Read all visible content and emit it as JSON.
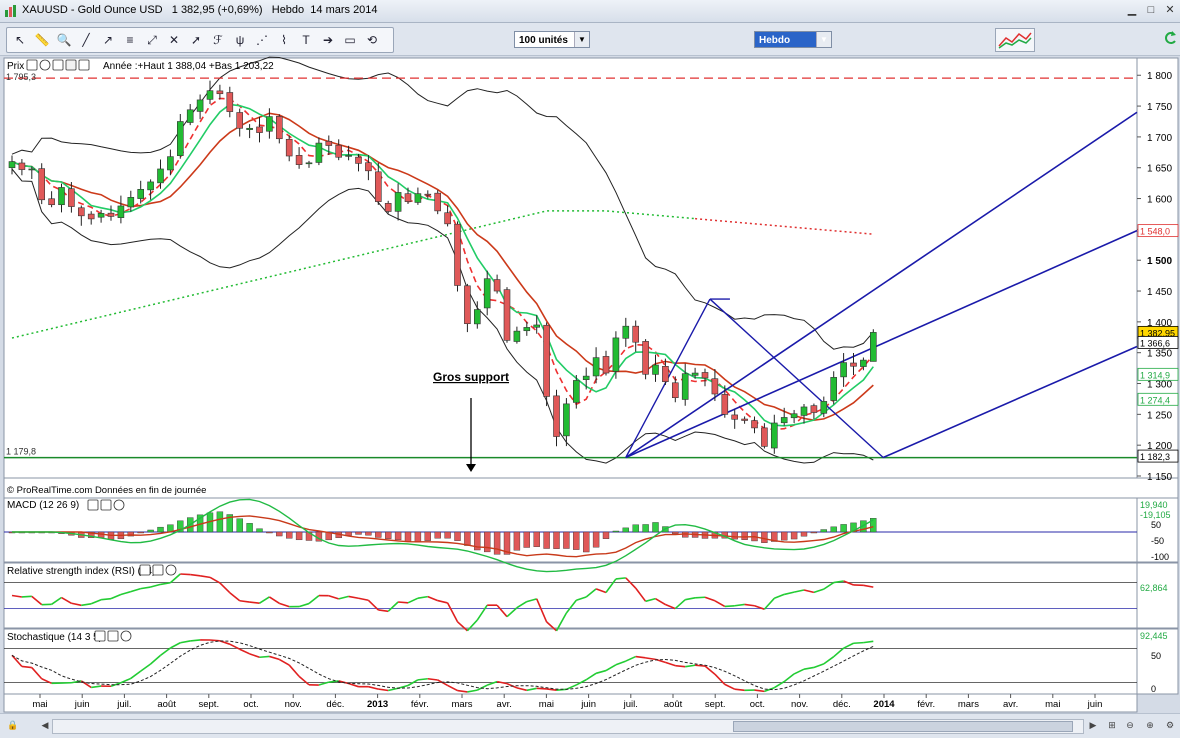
{
  "window": {
    "title": "XAUUSD - Gold Ounce USD   1 382,95 (+0,69%)   Hebdo  14 mars 2014"
  },
  "toolbar": {
    "units_value": "100 unités",
    "period_value": "Hebdo",
    "tools": [
      "pointer-icon",
      "ruler-icon",
      "magnifier-icon",
      "line-tool-icon",
      "ray-tool-icon",
      "channel-tool-icon",
      "trend-tool-icon",
      "cross-tool-icon",
      "arrow-tool-icon",
      "fibonacci-icon",
      "pitchfork-icon",
      "fan-tool-icon",
      "retracement-icon",
      "text-tool-icon",
      "arrow-right-icon",
      "rectangle-icon",
      "reset-icon"
    ]
  },
  "chart_data": [
    {
      "type": "candlestick",
      "panel_label": "Prix",
      "header_info": "Année :+Haut 1 388,04 +Bas 1 203,22",
      "source_note": "© ProRealTime.com  Données en fin de journée",
      "annotation": "Gros support",
      "support_level_label": "1 179,8",
      "high_level_label": "1 795,3",
      "ylim": [
        1150,
        1815
      ],
      "y_ticks": [
        {
          "v": 1800,
          "t": "1 800"
        },
        {
          "v": 1750,
          "t": "1 750"
        },
        {
          "v": 1700,
          "t": "1 700"
        },
        {
          "v": 1650,
          "t": "1 650"
        },
        {
          "v": 1600,
          "t": "1 600"
        },
        {
          "v": 1550,
          "t": ""
        },
        {
          "v": 1500,
          "t": "1 500"
        },
        {
          "v": 1450,
          "t": "1 450"
        },
        {
          "v": 1400,
          "t": "1 400"
        },
        {
          "v": 1350,
          "t": "1 350"
        },
        {
          "v": 1300,
          "t": "1 300"
        },
        {
          "v": 1250,
          "t": "1 250"
        },
        {
          "v": 1200,
          "t": "1 200"
        },
        {
          "v": 1150,
          "t": "1 150"
        }
      ],
      "value_tags": [
        {
          "v": 1548.0,
          "t": "1 548,0",
          "color": "#e03030"
        },
        {
          "v": 1382.95,
          "t": "1 382,95",
          "color": "#000000",
          "bg": "#ffd700"
        },
        {
          "v": 1366.6,
          "t": "1 366,6",
          "color": "#000000"
        },
        {
          "v": 1314.9,
          "t": "1 314,9",
          "color": "#22aa44"
        },
        {
          "v": 1274.4,
          "t": "1 274,4",
          "color": "#22aa44"
        },
        {
          "v": 1182.3,
          "t": "1 182,3",
          "color": "#000000"
        }
      ],
      "x_labels": [
        "mai",
        "juin",
        "juil.",
        "août",
        "sept.",
        "oct.",
        "nov.",
        "déc.",
        "2013",
        "févr.",
        "mars",
        "avr.",
        "mai",
        "juin",
        "juil.",
        "août",
        "sept.",
        "oct.",
        "nov.",
        "déc.",
        "2014",
        "févr.",
        "mars",
        "avr.",
        "mai",
        "juin"
      ],
      "x_label_bold": [
        "2013",
        "2014"
      ],
      "weekly_close": [
        1660,
        1647,
        1648,
        1598,
        1590,
        1618,
        1587,
        1572,
        1567,
        1576,
        1571,
        1588,
        1602,
        1615,
        1627,
        1648,
        1668,
        1725,
        1744,
        1760,
        1775,
        1770,
        1741,
        1714,
        1714,
        1707,
        1733,
        1697,
        1669,
        1655,
        1658,
        1690,
        1686,
        1667,
        1670,
        1657,
        1645,
        1595,
        1579,
        1610,
        1595,
        1608,
        1607,
        1580,
        1559,
        1459,
        1397,
        1420,
        1470,
        1450,
        1370,
        1385,
        1391,
        1395,
        1279,
        1214,
        1267,
        1305,
        1312,
        1342,
        1317,
        1374,
        1393,
        1367,
        1315,
        1330,
        1303,
        1277,
        1316,
        1317,
        1309,
        1283,
        1250,
        1242,
        1240,
        1228,
        1198,
        1236,
        1245,
        1251,
        1262,
        1253,
        1271,
        1310,
        1334,
        1328,
        1338,
        1382.95
      ],
      "overlays": [
        "bollinger_upper",
        "bollinger_lower",
        "moving_average_red",
        "moving_average_green_dashed",
        "moving_average_long_dotted",
        "andrews_pitchfork"
      ]
    },
    {
      "type": "bar",
      "panel_label": "MACD (12 26 9)",
      "y_ticks": [
        {
          "v": 50,
          "t": "50"
        },
        {
          "v": -50,
          "t": "-50"
        },
        {
          "v": -100,
          "t": "-100"
        }
      ],
      "value_tags": [
        {
          "t": "19,940",
          "color": "#22aa44"
        },
        {
          "t": "-19,105",
          "color": "#22aa44"
        }
      ],
      "last_values": {
        "macd": 19.94,
        "signal": -19.105
      }
    },
    {
      "type": "line",
      "panel_label": "Relative strength index (RSI) (14)",
      "value_tags": [
        {
          "t": "62,864",
          "color": "#22aa44"
        }
      ],
      "last_value": 62.864
    },
    {
      "type": "line",
      "panel_label": "Stochastique (14 3 5)",
      "y_ticks": [
        {
          "v": 50,
          "t": "50"
        },
        {
          "v": 0,
          "t": "0"
        }
      ],
      "value_tags": [
        {
          "t": "92,445",
          "color": "#22aa44"
        }
      ],
      "last_value": 92.445
    }
  ],
  "colors": {
    "up": "#22bb33",
    "down": "#e05858",
    "bg": "#ffffff",
    "accent": "#2a64c8"
  }
}
